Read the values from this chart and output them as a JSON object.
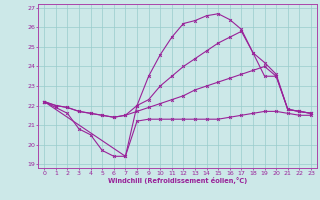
{
  "xlabel": "Windchill (Refroidissement éolien,°C)",
  "bg_color": "#cce8e8",
  "line_color": "#992299",
  "grid_color": "#99cccc",
  "spine_color": "#aa44aa",
  "xlim": [
    -0.5,
    23.5
  ],
  "ylim": [
    18.8,
    27.2
  ],
  "yticks": [
    19,
    20,
    21,
    22,
    23,
    24,
    25,
    26,
    27
  ],
  "xticks": [
    0,
    1,
    2,
    3,
    4,
    5,
    6,
    7,
    8,
    9,
    10,
    11,
    12,
    13,
    14,
    15,
    16,
    17,
    18,
    19,
    20,
    21,
    22,
    23
  ],
  "curve_bottom_x": [
    0,
    1,
    2,
    3,
    4,
    5,
    6,
    7,
    8,
    9,
    10,
    11,
    12,
    13,
    14,
    15,
    16,
    17,
    18,
    19,
    20,
    21,
    22,
    23
  ],
  "curve_bottom_y": [
    22.2,
    21.9,
    21.6,
    20.8,
    20.5,
    19.7,
    19.4,
    19.4,
    21.2,
    21.3,
    21.3,
    21.3,
    21.3,
    21.3,
    21.3,
    21.3,
    21.4,
    21.5,
    21.6,
    21.7,
    21.7,
    21.6,
    21.5,
    21.5
  ],
  "curve_straight_x": [
    0,
    1,
    2,
    3,
    4,
    5,
    6,
    7,
    8,
    9,
    10,
    11,
    12,
    13,
    14,
    15,
    16,
    17,
    18,
    19,
    20,
    21,
    22,
    23
  ],
  "curve_straight_y": [
    22.2,
    22.0,
    21.9,
    21.7,
    21.6,
    21.5,
    21.4,
    21.5,
    21.7,
    21.9,
    22.1,
    22.3,
    22.5,
    22.8,
    23.0,
    23.2,
    23.4,
    23.6,
    23.8,
    24.0,
    23.5,
    21.8,
    21.7,
    21.6
  ],
  "curve_upper_x": [
    0,
    1,
    2,
    3,
    4,
    5,
    6,
    7,
    8,
    9,
    10,
    11,
    12,
    13,
    14,
    15,
    16,
    17,
    18,
    19,
    20,
    21,
    22,
    23
  ],
  "curve_upper_y": [
    22.2,
    22.0,
    21.9,
    21.7,
    21.6,
    21.5,
    21.4,
    21.5,
    22.0,
    22.3,
    23.0,
    23.5,
    24.0,
    24.4,
    24.8,
    25.2,
    25.5,
    25.8,
    24.7,
    24.2,
    23.6,
    21.8,
    21.7,
    21.6
  ],
  "curve_peak_x": [
    0,
    7,
    8,
    9,
    10,
    11,
    12,
    13,
    14,
    15,
    16,
    17,
    18,
    19,
    20,
    21,
    22,
    23
  ],
  "curve_peak_y": [
    22.2,
    19.4,
    22.0,
    23.5,
    24.6,
    25.5,
    26.2,
    26.35,
    26.6,
    26.7,
    26.4,
    25.9,
    24.7,
    23.5,
    23.5,
    21.8,
    21.7,
    21.6
  ]
}
